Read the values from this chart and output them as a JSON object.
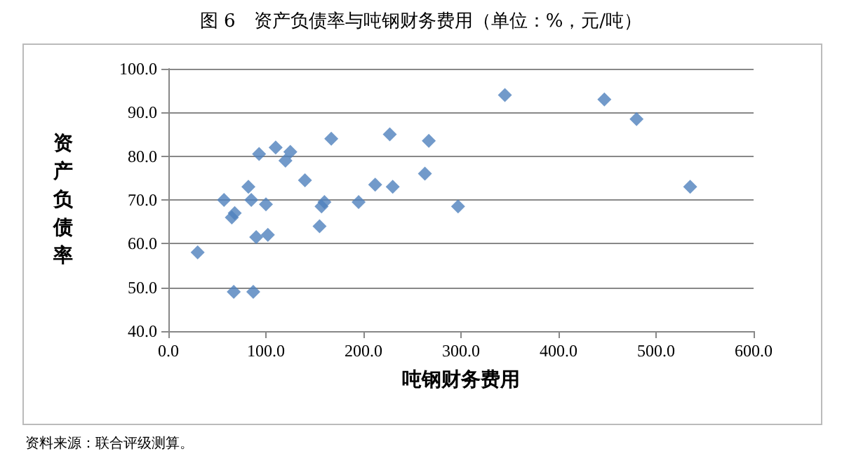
{
  "chart_data": {
    "type": "scatter",
    "title": "图 6　资产负债率与吨钢财务费用（单位：%，元/吨）",
    "xlabel": "吨钢财务费用",
    "ylabel": "资产负债率",
    "annotations": [
      "资料来源：联合评级测算。"
    ],
    "x": [
      30,
      57,
      65,
      68,
      67,
      82,
      85,
      87,
      90,
      93,
      100,
      102,
      110,
      120,
      125,
      140,
      155,
      157,
      160,
      167,
      195,
      212,
      227,
      230,
      263,
      267,
      297,
      345,
      447,
      480,
      535
    ],
    "values": [
      58,
      70,
      66,
      67,
      49,
      73,
      70,
      49,
      61.5,
      80.5,
      69,
      62,
      82,
      79,
      81,
      74.5,
      64,
      68.5,
      69.5,
      84,
      69.5,
      73.5,
      85,
      73,
      76,
      83.5,
      68.5,
      94,
      93,
      88.5,
      73
    ],
    "color": "#4f81bd",
    "marker": "diamond",
    "xlim": [
      0,
      600
    ],
    "xticks": [
      {
        "value": 0,
        "label": "0.0"
      },
      {
        "value": 100,
        "label": "100.0"
      },
      {
        "value": 200,
        "label": "200.0"
      },
      {
        "value": 300,
        "label": "300.0"
      },
      {
        "value": 400,
        "label": "400.0"
      },
      {
        "value": 500,
        "label": "500.0"
      },
      {
        "value": 600,
        "label": "600.0"
      }
    ],
    "ylim": [
      40,
      100
    ],
    "yticks": [
      {
        "value": 40,
        "label": "40.0"
      },
      {
        "value": 50,
        "label": "50.0"
      },
      {
        "value": 60,
        "label": "60.0"
      },
      {
        "value": 70,
        "label": "70.0"
      },
      {
        "value": 80,
        "label": "80.0"
      },
      {
        "value": 90,
        "label": "90.0"
      },
      {
        "value": 100,
        "label": "100.0"
      }
    ],
    "grid": "y"
  }
}
